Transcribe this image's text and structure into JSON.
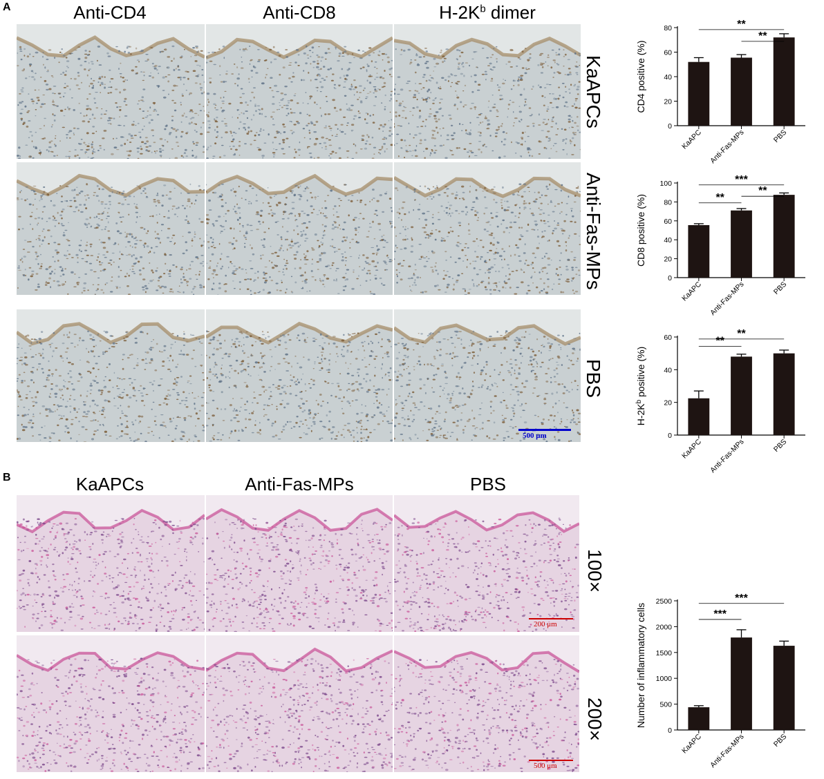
{
  "panel_a": {
    "letter": "A",
    "col_titles": [
      "Anti-CD4",
      "Anti-CD8",
      "H-2K",
      "b",
      " dimer"
    ],
    "row_titles": [
      "KaAPCs",
      "Anti-Fas-MPs",
      "PBS"
    ],
    "scale_bar": "500 μm"
  },
  "panel_b": {
    "letter": "B",
    "col_titles": [
      "KaAPCs",
      "Anti-Fas-MPs",
      "PBS"
    ],
    "row_titles": [
      "100×",
      "200×"
    ],
    "scale_bar_top": "200 μm",
    "scale_bar_bottom": "500 μm"
  },
  "colors": {
    "bar": "#1e1412",
    "ihc_bg": "#c9d0d2",
    "ihc_brown": "#7a5a35",
    "he_bg": "#e6d4e2",
    "he_purple": "#7d4a8c",
    "he_pink": "#c9569a",
    "scale_blue": "#0000cc",
    "scale_red": "#cc0000"
  },
  "chart_data": [
    {
      "type": "bar",
      "categories": [
        "KaAPC",
        "Anti-Fas-MPs",
        "PBS"
      ],
      "values": [
        52,
        55.5,
        72
      ],
      "errors": [
        3.5,
        2.5,
        3
      ],
      "ylabel": "CD4 positive (%)",
      "ylim": [
        0,
        80
      ],
      "yticks": [
        0,
        20,
        40,
        60,
        80
      ],
      "significance": [
        {
          "from": 0,
          "to": 2,
          "label": "**"
        },
        {
          "from": 1,
          "to": 2,
          "label": "**"
        }
      ]
    },
    {
      "type": "bar",
      "categories": [
        "KaAPC",
        "Anti-Fas-MPs",
        "PBS"
      ],
      "values": [
        55.5,
        71,
        87.5
      ],
      "errors": [
        1.5,
        2,
        2
      ],
      "ylabel": "CD8 positive (%)",
      "ylim": [
        0,
        100
      ],
      "yticks": [
        0,
        20,
        40,
        60,
        80,
        100
      ],
      "significance": [
        {
          "from": 0,
          "to": 2,
          "label": "***"
        },
        {
          "from": 1,
          "to": 2,
          "label": "**"
        },
        {
          "from": 0,
          "to": 1,
          "label": "**"
        }
      ]
    },
    {
      "type": "bar",
      "categories": [
        "KaAPC",
        "Anti-Fas-MPs",
        "PBS"
      ],
      "values": [
        22.5,
        48,
        50
      ],
      "errors": [
        4.5,
        1.5,
        2
      ],
      "ylabel": "H-2K",
      "ylabel_sup": "b",
      "ylabel_tail": " positive (%)",
      "ylim": [
        0,
        60
      ],
      "yticks": [
        0,
        20,
        40,
        60
      ],
      "significance": [
        {
          "from": 0,
          "to": 2,
          "label": "**"
        },
        {
          "from": 0,
          "to": 1,
          "label": "**"
        }
      ]
    },
    {
      "type": "bar",
      "categories": [
        "KaAPC",
        "Anti-Fas-MPs",
        "PBS"
      ],
      "values": [
        440,
        1790,
        1630
      ],
      "errors": [
        30,
        150,
        90
      ],
      "ylabel": "Number of inflammatory cells",
      "ylim": [
        0,
        2500
      ],
      "yticks": [
        0,
        500,
        1000,
        1500,
        2000,
        2500
      ],
      "significance": [
        {
          "from": 0,
          "to": 2,
          "label": "***"
        },
        {
          "from": 0,
          "to": 1,
          "label": "***"
        }
      ]
    }
  ]
}
